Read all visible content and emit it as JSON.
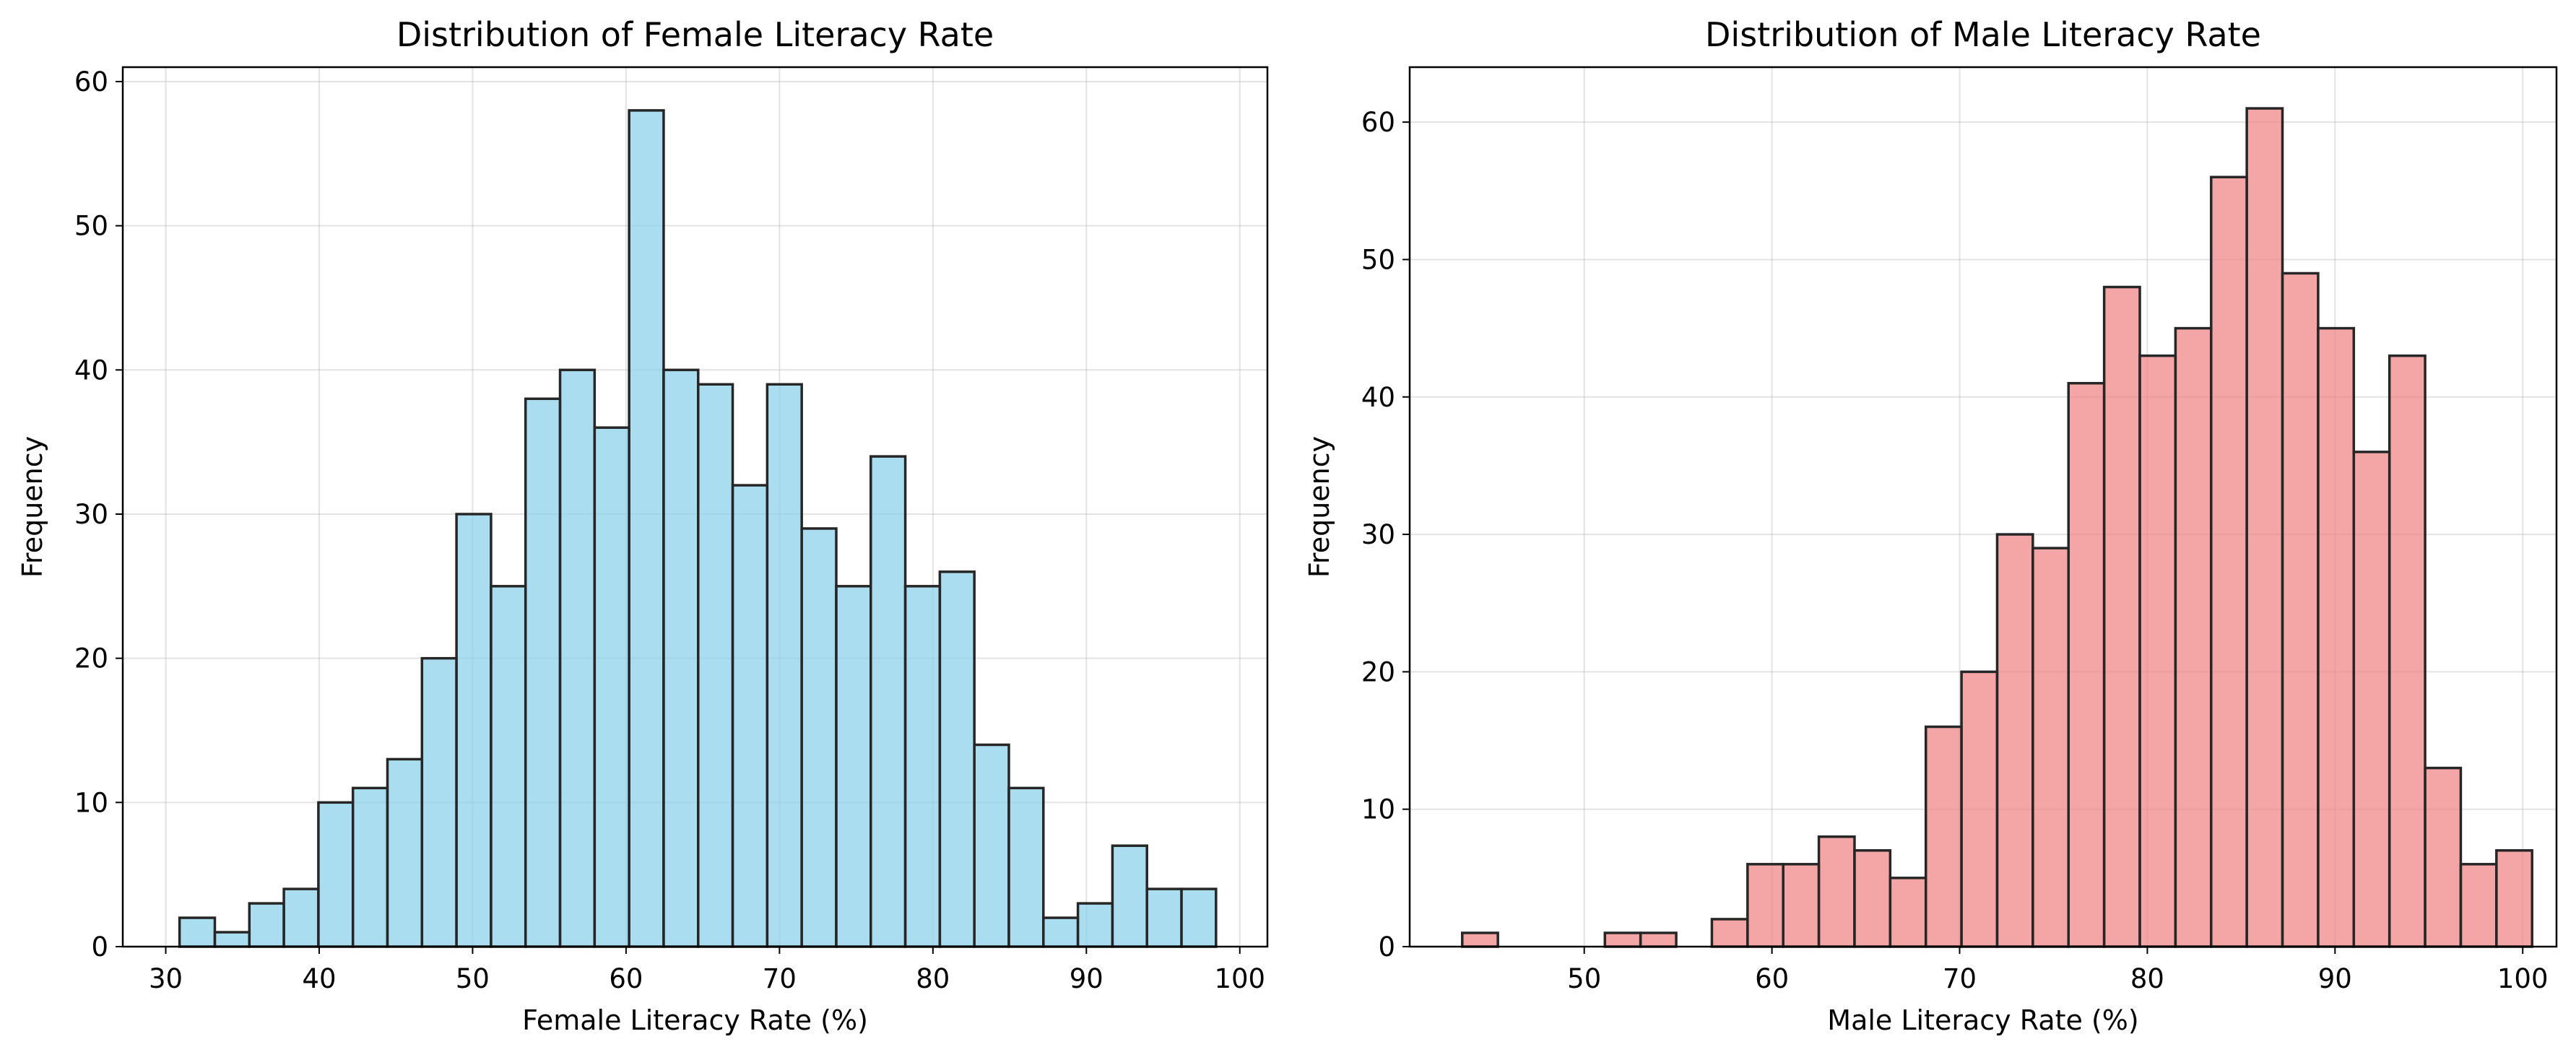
{
  "chart_data": [
    {
      "type": "bar",
      "title": "Distribution of Female Literacy Rate",
      "xlabel": "Female Literacy Rate (%)",
      "ylabel": "Frequency",
      "xlim": [
        27.2,
        101.8
      ],
      "ylim": [
        0,
        61
      ],
      "xticks": [
        30,
        40,
        50,
        60,
        70,
        80,
        90,
        100
      ],
      "yticks": [
        0,
        10,
        20,
        30,
        40,
        50,
        60
      ],
      "grid": true,
      "bar_color": "#87CEEB",
      "bin_edges": [
        30.9,
        33.2,
        35.45,
        37.7,
        39.95,
        42.2,
        44.45,
        46.7,
        48.95,
        51.2,
        53.45,
        55.7,
        57.95,
        60.2,
        62.45,
        64.7,
        66.95,
        69.2,
        71.45,
        73.7,
        75.95,
        78.2,
        80.45,
        82.7,
        84.95,
        87.2,
        89.45,
        91.7,
        93.95,
        96.2,
        98.45
      ],
      "values": [
        2,
        1,
        3,
        4,
        10,
        11,
        13,
        20,
        30,
        25,
        38,
        40,
        36,
        58,
        40,
        39,
        32,
        39,
        29,
        25,
        34,
        25,
        26,
        14,
        11,
        2,
        3,
        7,
        4,
        4
      ]
    },
    {
      "type": "bar",
      "title": "Distribution of Male Literacy Rate",
      "xlabel": "Male Literacy Rate (%)",
      "ylabel": "Frequency",
      "xlim": [
        40.7,
        101.8
      ],
      "ylim": [
        0,
        64
      ],
      "xticks": [
        50,
        60,
        70,
        80,
        90,
        100
      ],
      "yticks": [
        0,
        10,
        20,
        30,
        40,
        50,
        60
      ],
      "grid": true,
      "bar_color": "#F08080",
      "bin_edges": [
        43.5,
        45.4,
        47.3,
        49.2,
        51.1,
        53.0,
        54.9,
        56.8,
        58.7,
        60.6,
        62.5,
        64.4,
        66.3,
        68.2,
        70.1,
        72.0,
        73.9,
        75.8,
        77.7,
        79.6,
        81.5,
        83.4,
        85.3,
        87.2,
        89.1,
        91.0,
        92.9,
        94.8,
        96.7,
        98.6,
        100.5
      ],
      "values": [
        1,
        0,
        0,
        0,
        1,
        1,
        0,
        2,
        6,
        6,
        8,
        7,
        5,
        16,
        20,
        30,
        29,
        41,
        48,
        43,
        45,
        56,
        61,
        49,
        45,
        36,
        43,
        13,
        6,
        7
      ]
    }
  ]
}
